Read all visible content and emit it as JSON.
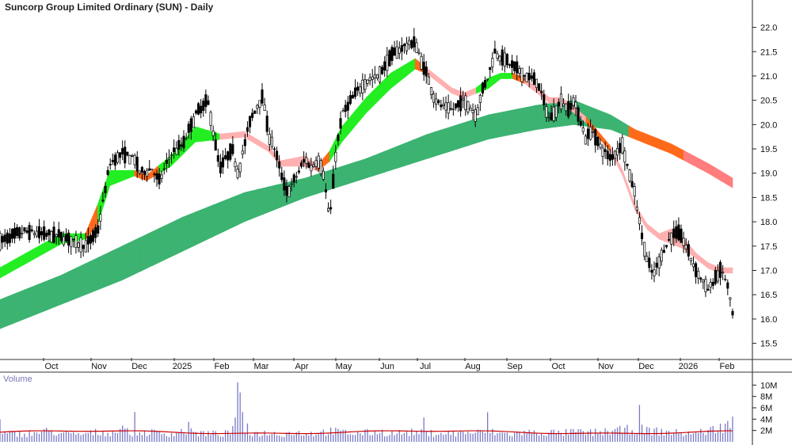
{
  "chart_data": {
    "type": "candlestick",
    "title": "Suncorp Group Limited Ordinary (SUN) - Daily",
    "price_axis": {
      "ticks": [
        "22.0",
        "21.5",
        "21.0",
        "20.5",
        "20.0",
        "19.5",
        "19.0",
        "18.5",
        "18.0",
        "17.5",
        "17.0",
        "16.5",
        "16.0",
        "15.5"
      ],
      "ylim": [
        15.2,
        22.4
      ]
    },
    "x_labels": [
      "Oct",
      "Nov",
      "Dec",
      "2025",
      "Feb",
      "Mar",
      "Apr",
      "May",
      "Jun",
      "Jul",
      "Aug",
      "Sep",
      "Oct",
      "Nov",
      "Dec",
      "2026",
      "Feb"
    ],
    "volume_panel": {
      "title": "Volume",
      "ticks": [
        "10M",
        "8M",
        "6M",
        "4M",
        "2M"
      ],
      "ylim": [
        0,
        12
      ]
    },
    "price_path": [
      [
        0,
        17.6
      ],
      [
        4,
        17.8
      ],
      [
        7,
        17.75
      ],
      [
        10,
        17.7
      ],
      [
        12,
        17.6
      ],
      [
        14,
        17.5
      ],
      [
        16,
        17.8
      ],
      [
        18,
        19.2
      ],
      [
        20,
        19.4
      ],
      [
        22,
        19.3
      ],
      [
        23,
        19.0
      ],
      [
        25,
        19.1
      ],
      [
        26,
        18.8
      ],
      [
        28,
        19.4
      ],
      [
        30,
        19.6
      ],
      [
        32,
        20.2
      ],
      [
        34,
        20.5
      ],
      [
        35,
        19.8
      ],
      [
        36,
        19.1
      ],
      [
        38,
        19.5
      ],
      [
        39,
        19.0
      ],
      [
        41,
        20.1
      ],
      [
        43,
        20.6
      ],
      [
        44,
        19.8
      ],
      [
        45,
        19.5
      ],
      [
        46,
        19.0
      ],
      [
        47,
        18.6
      ],
      [
        48,
        18.8
      ],
      [
        50,
        19.3
      ],
      [
        51,
        19.1
      ],
      [
        52,
        19.3
      ],
      [
        53,
        19.0
      ],
      [
        54,
        18.0
      ],
      [
        55,
        19.4
      ],
      [
        56,
        20.2
      ],
      [
        58,
        20.6
      ],
      [
        60,
        20.9
      ],
      [
        62,
        21.0
      ],
      [
        64,
        21.4
      ],
      [
        66,
        21.6
      ],
      [
        68,
        21.7
      ],
      [
        69,
        21.3
      ],
      [
        70,
        21.0
      ],
      [
        71,
        20.6
      ],
      [
        72,
        20.4
      ],
      [
        74,
        20.3
      ],
      [
        76,
        20.5
      ],
      [
        78,
        20.2
      ],
      [
        79,
        20.7
      ],
      [
        80,
        21.0
      ],
      [
        81,
        21.5
      ],
      [
        82,
        21.4
      ],
      [
        84,
        21.2
      ],
      [
        86,
        21.0
      ],
      [
        88,
        20.9
      ],
      [
        89,
        20.5
      ],
      [
        90,
        20.1
      ],
      [
        91,
        20.3
      ],
      [
        92,
        20.5
      ],
      [
        93,
        20.3
      ],
      [
        94,
        20.5
      ],
      [
        95,
        20.1
      ],
      [
        96,
        19.7
      ],
      [
        97,
        19.9
      ],
      [
        98,
        19.6
      ],
      [
        100,
        19.3
      ],
      [
        102,
        19.6
      ],
      [
        103,
        19.0
      ],
      [
        104,
        18.6
      ],
      [
        105,
        17.8
      ],
      [
        106,
        17.2
      ],
      [
        107,
        16.9
      ],
      [
        108,
        17.2
      ],
      [
        109,
        17.5
      ],
      [
        110,
        17.7
      ],
      [
        111,
        17.8
      ],
      [
        112,
        17.6
      ],
      [
        113,
        17.3
      ],
      [
        114,
        17.0
      ],
      [
        116,
        16.6
      ],
      [
        117,
        16.8
      ],
      [
        118,
        17.0
      ],
      [
        119,
        16.8
      ],
      [
        120,
        16.1
      ]
    ],
    "ema_fast_band": [
      [
        0,
        16.9,
        17.0
      ],
      [
        10,
        17.6,
        17.7
      ],
      [
        14,
        17.7,
        17.7
      ],
      [
        16,
        18.0,
        18.3
      ],
      [
        18,
        18.8,
        19.0
      ],
      [
        22,
        19.0,
        19.0
      ],
      [
        24,
        18.9,
        18.9
      ],
      [
        28,
        19.2,
        19.3
      ],
      [
        32,
        19.7,
        19.9
      ],
      [
        36,
        19.75,
        19.75
      ],
      [
        40,
        19.8,
        19.8
      ],
      [
        44,
        19.5,
        19.5
      ],
      [
        46,
        19.2,
        19.2
      ],
      [
        50,
        19.2,
        19.3
      ],
      [
        52,
        19.1,
        19.1
      ],
      [
        54,
        19.3,
        19.4
      ],
      [
        56,
        19.7,
        19.9
      ],
      [
        60,
        20.3,
        20.5
      ],
      [
        64,
        20.8,
        21.0
      ],
      [
        68,
        21.2,
        21.3
      ],
      [
        70,
        21.1,
        21.1
      ],
      [
        72,
        20.9,
        20.9
      ],
      [
        74,
        20.7,
        20.7
      ],
      [
        76,
        20.6,
        20.6
      ],
      [
        78,
        20.7,
        20.7
      ],
      [
        80,
        20.8,
        20.9
      ],
      [
        82,
        21.0,
        21.0
      ],
      [
        84,
        21.0,
        21.0
      ],
      [
        86,
        20.9,
        20.9
      ],
      [
        88,
        20.7,
        20.7
      ],
      [
        90,
        20.5,
        20.5
      ],
      [
        92,
        20.5,
        20.5
      ],
      [
        94,
        20.3,
        20.3
      ],
      [
        96,
        20.1,
        20.1
      ],
      [
        98,
        19.8,
        19.8
      ],
      [
        100,
        19.5,
        19.5
      ],
      [
        102,
        19.0,
        19.0
      ],
      [
        104,
        18.3,
        18.3
      ],
      [
        106,
        17.9,
        17.9
      ],
      [
        108,
        17.7,
        17.7
      ],
      [
        110,
        17.6,
        17.8
      ],
      [
        112,
        17.5,
        17.6
      ],
      [
        114,
        17.3,
        17.3
      ],
      [
        116,
        17.1,
        17.1
      ],
      [
        118,
        17.0,
        17.0
      ],
      [
        120,
        17.0,
        17.0
      ]
    ],
    "ema_slow_band": [
      [
        0,
        15.8,
        16.4
      ],
      [
        10,
        16.3,
        16.9
      ],
      [
        20,
        16.8,
        17.5
      ],
      [
        30,
        17.4,
        18.1
      ],
      [
        40,
        18.0,
        18.6
      ],
      [
        50,
        18.5,
        18.9
      ],
      [
        60,
        18.9,
        19.3
      ],
      [
        70,
        19.3,
        19.8
      ],
      [
        80,
        19.7,
        20.2
      ],
      [
        88,
        19.9,
        20.4
      ],
      [
        94,
        20.0,
        20.5
      ],
      [
        100,
        19.9,
        20.2
      ],
      [
        104,
        19.7,
        19.9
      ],
      [
        110,
        19.4,
        19.6
      ],
      [
        116,
        19.0,
        19.2
      ],
      [
        120,
        18.7,
        18.9
      ]
    ],
    "volume": [
      [
        0,
        1.2
      ],
      [
        2,
        1.4
      ],
      [
        4,
        1.3
      ],
      [
        6,
        1.5
      ],
      [
        8,
        1.8
      ],
      [
        10,
        1.4
      ],
      [
        12,
        1.2
      ],
      [
        14,
        1.3
      ],
      [
        16,
        1.6
      ],
      [
        18,
        1.5
      ],
      [
        20,
        1.9
      ],
      [
        22,
        1.4
      ],
      [
        24,
        1.6
      ],
      [
        26,
        1.5
      ],
      [
        28,
        1.3
      ],
      [
        30,
        1.8
      ],
      [
        32,
        1.5
      ],
      [
        34,
        1.4
      ],
      [
        36,
        1.3
      ],
      [
        38,
        1.5
      ],
      [
        39,
        9.0
      ],
      [
        40,
        1.6
      ],
      [
        42,
        1.4
      ],
      [
        44,
        1.5
      ],
      [
        46,
        1.3
      ],
      [
        48,
        1.6
      ],
      [
        50,
        1.4
      ],
      [
        52,
        1.5
      ],
      [
        54,
        1.8
      ],
      [
        56,
        1.6
      ],
      [
        58,
        1.4
      ],
      [
        60,
        1.5
      ],
      [
        62,
        1.7
      ],
      [
        64,
        1.4
      ],
      [
        66,
        1.5
      ],
      [
        68,
        1.6
      ],
      [
        70,
        1.4
      ],
      [
        72,
        1.5
      ],
      [
        74,
        1.3
      ],
      [
        76,
        1.6
      ],
      [
        78,
        1.5
      ],
      [
        80,
        1.7
      ],
      [
        82,
        1.4
      ],
      [
        84,
        1.3
      ],
      [
        86,
        1.6
      ],
      [
        88,
        1.5
      ],
      [
        90,
        1.6
      ],
      [
        92,
        1.4
      ],
      [
        94,
        1.7
      ],
      [
        96,
        1.5
      ],
      [
        98,
        1.6
      ],
      [
        100,
        1.8
      ],
      [
        102,
        1.9
      ],
      [
        104,
        2.2
      ],
      [
        106,
        1.9
      ],
      [
        108,
        1.7
      ],
      [
        110,
        1.6
      ],
      [
        112,
        1.4
      ],
      [
        114,
        1.5
      ],
      [
        116,
        1.8
      ],
      [
        118,
        2.4
      ],
      [
        120,
        3.2
      ]
    ]
  },
  "colors": {
    "candle": "#000000",
    "fast_up": "#22ee22",
    "fast_down": "#ffb0b0",
    "fast_trans": "#ff6a1a",
    "slow_up": "#3cb371",
    "slow_down": "#ff6a1a",
    "slow_end": "#ff7d7d",
    "volume_bar": "#7878c8",
    "volume_avg": "#cc0000",
    "axis": "#222222",
    "divider": "#777777"
  }
}
